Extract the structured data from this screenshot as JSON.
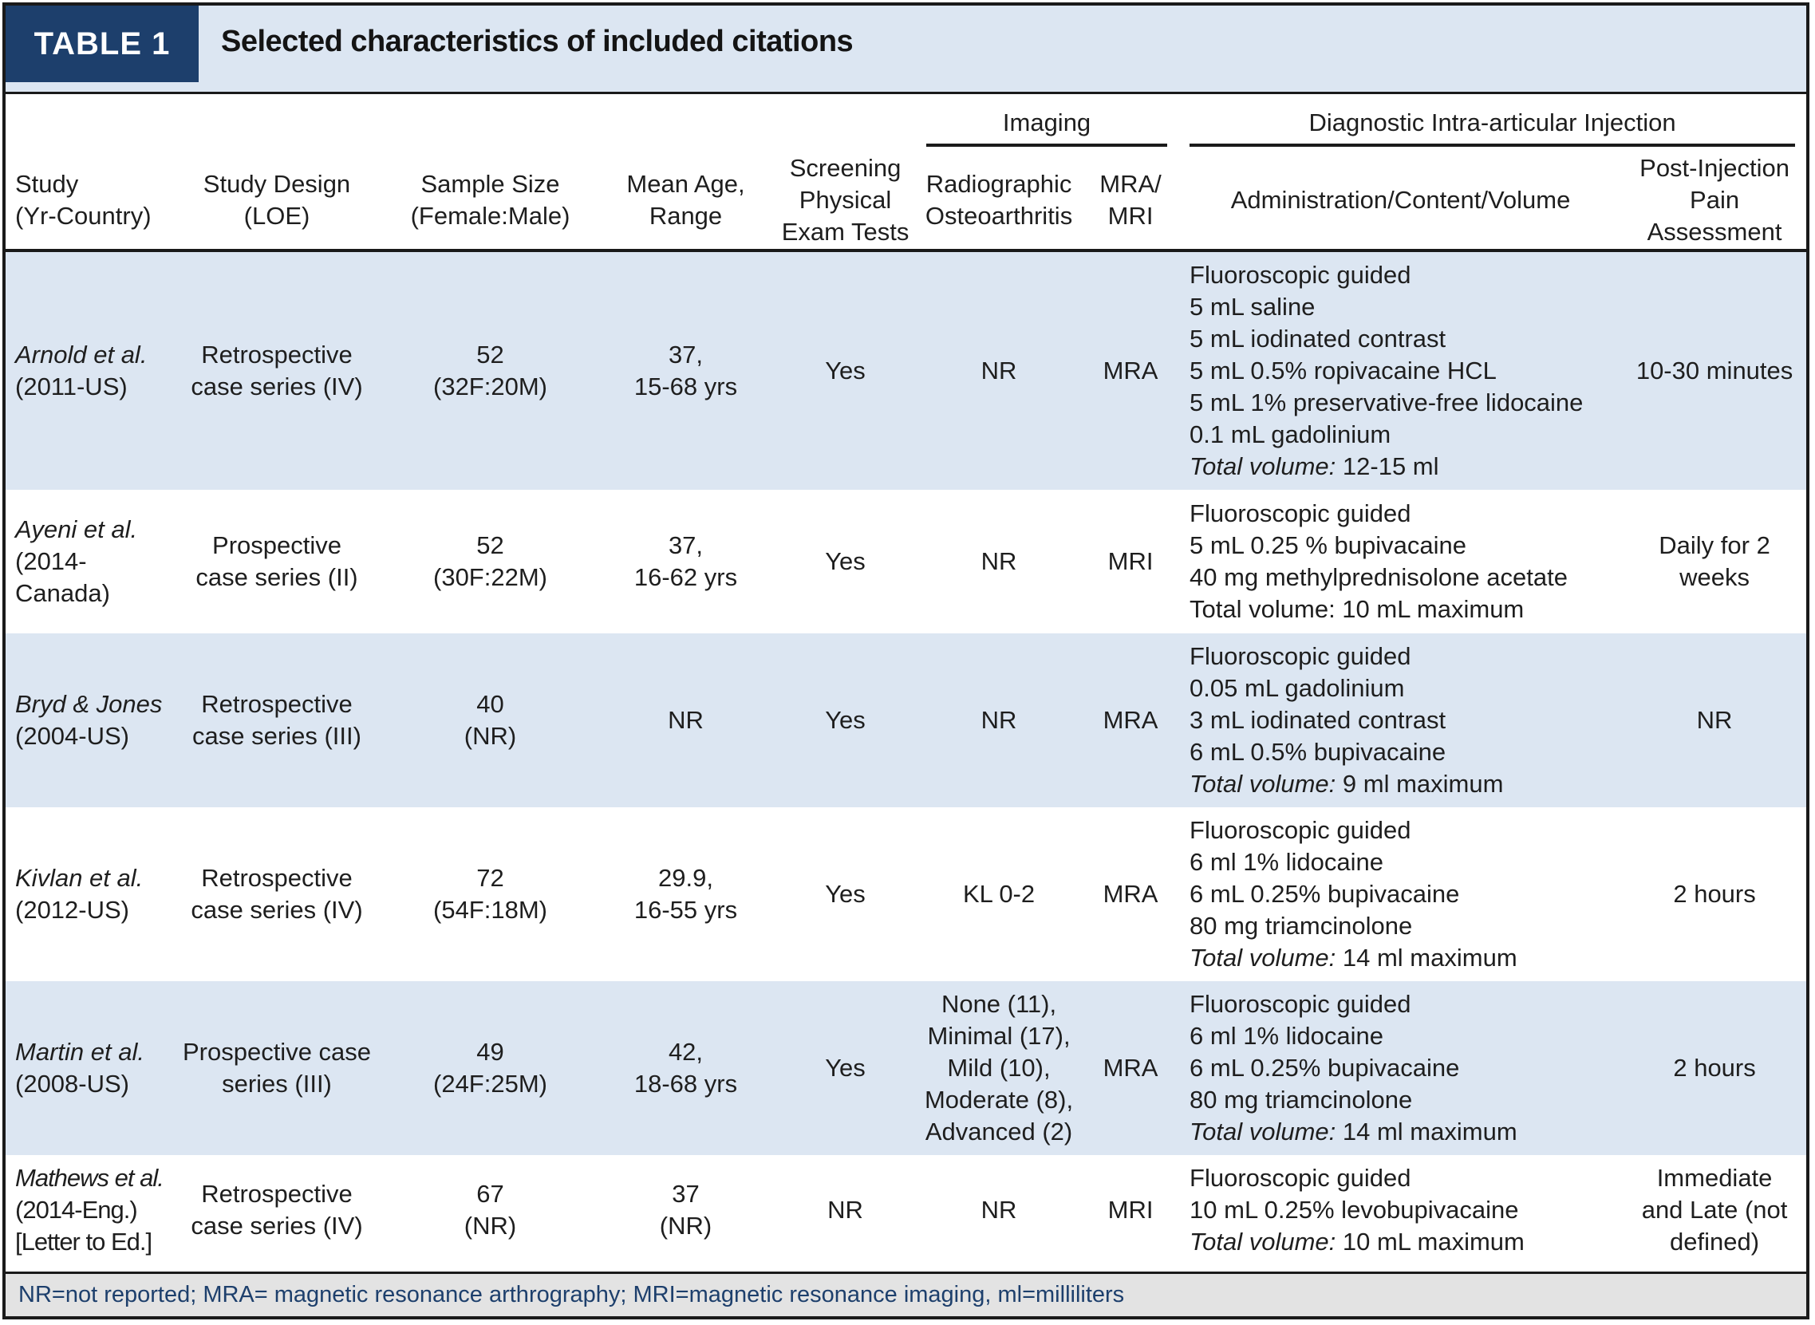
{
  "header": {
    "tag": "TABLE 1",
    "title": "Selected characteristics of included citations"
  },
  "groups": {
    "imaging": "Imaging",
    "injection": "Diagnostic Intra-articular Injection"
  },
  "columns": {
    "study": [
      "Study",
      "(Yr-Country)"
    ],
    "design": [
      "Study Design",
      "(LOE)"
    ],
    "sample": [
      "Sample Size",
      "(Female:Male)"
    ],
    "age": [
      "Mean Age,",
      "Range"
    ],
    "screening": [
      "Screening",
      "Physical",
      "Exam Tests"
    ],
    "radio": [
      "Radiographic",
      "Osteoarthritis"
    ],
    "mra": [
      "MRA/",
      "MRI"
    ],
    "admin": [
      "Administration/Content/Volume"
    ],
    "post": [
      "Post-Injection",
      "Pain Assessment"
    ]
  },
  "rows": [
    {
      "study": [
        "Arnold et al.",
        "(2011-US)"
      ],
      "design": [
        "Retrospective",
        "case series (IV)"
      ],
      "sample": [
        "52",
        "(32F:20M)"
      ],
      "age": [
        "37,",
        "15-68 yrs"
      ],
      "screening": "Yes",
      "radio": [
        "NR"
      ],
      "mra": "MRA",
      "admin": [
        "Fluoroscopic guided",
        "5 mL saline",
        "5 mL iodinated contrast",
        "5 mL 0.5% ropivacaine HCL",
        "5 mL 1% preservative-free lidocaine",
        "0.1 mL gadolinium"
      ],
      "total_label": "Total volume:",
      "total_value": " 12-15 ml",
      "post": [
        "10-30 minutes"
      ]
    },
    {
      "study": [
        "Ayeni et al.",
        "(2014-Canada)"
      ],
      "design": [
        "Prospective",
        "case series (II)"
      ],
      "sample": [
        "52",
        "(30F:22M)"
      ],
      "age": [
        "37,",
        "16-62 yrs"
      ],
      "screening": "Yes",
      "radio": [
        "NR"
      ],
      "mra": "MRI",
      "admin": [
        "Fluoroscopic guided",
        "5 mL 0.25 % bupivacaine",
        "40 mg methylprednisolone acetate",
        "Total volume: 10 mL maximum"
      ],
      "post": [
        "Daily for 2 weeks"
      ]
    },
    {
      "study": [
        "Bryd & Jones",
        "(2004-US)"
      ],
      "design": [
        "Retrospective",
        "case series (III)"
      ],
      "sample": [
        "40",
        "(NR)"
      ],
      "age": [
        "NR"
      ],
      "screening": "Yes",
      "radio": [
        "NR"
      ],
      "mra": "MRA",
      "admin": [
        "Fluoroscopic guided",
        "0.05 mL gadolinium",
        "3 mL iodinated contrast",
        "6 mL 0.5% bupivacaine"
      ],
      "total_label": "Total volume:",
      "total_value": " 9 ml maximum",
      "post": [
        "NR"
      ]
    },
    {
      "study": [
        "Kivlan et al.",
        "(2012-US)"
      ],
      "design": [
        "Retrospective",
        "case series (IV)"
      ],
      "sample": [
        "72",
        "(54F:18M)"
      ],
      "age": [
        "29.9,",
        "16-55 yrs"
      ],
      "screening": "Yes",
      "radio": [
        "KL 0-2"
      ],
      "mra": "MRA",
      "admin": [
        "Fluoroscopic guided",
        "6 ml 1% lidocaine",
        "6 mL 0.25% bupivacaine",
        "80 mg triamcinolone"
      ],
      "total_label": "Total volume:",
      "total_value": " 14 ml maximum",
      "post": [
        "2 hours"
      ]
    },
    {
      "study": [
        "Martin et al.",
        "(2008-US)"
      ],
      "design": [
        "Prospective case",
        "series (III)"
      ],
      "sample": [
        "49",
        "(24F:25M)"
      ],
      "age": [
        "42,",
        "18-68 yrs"
      ],
      "screening": "Yes",
      "radio": [
        "None (11),",
        "Minimal (17),",
        "Mild (10),",
        "Moderate (8),",
        "Advanced (2)"
      ],
      "mra": "MRA",
      "admin": [
        "Fluoroscopic guided",
        "6 ml 1% lidocaine",
        "6 mL 0.25% bupivacaine",
        "80 mg triamcinolone"
      ],
      "total_label": "Total volume:",
      "total_value": " 14 ml maximum",
      "post": [
        "2 hours"
      ]
    },
    {
      "study": [
        "Mathews et al.",
        "(2014-Eng.)",
        "[Letter to Ed.]"
      ],
      "design": [
        "Retrospective",
        "case series (IV)"
      ],
      "sample": [
        "67",
        "(NR)"
      ],
      "age": [
        "37",
        "(NR)"
      ],
      "screening": "NR",
      "radio": [
        "NR"
      ],
      "mra": "MRI",
      "admin": [
        "Fluoroscopic guided",
        "10 mL 0.25% levobupivacaine"
      ],
      "total_label": "Total volume:",
      "total_value": " 10 mL maximum",
      "post": [
        "Immediate",
        "and Late (not",
        "defined)"
      ]
    }
  ],
  "footer": "NR=not reported; MRA= magnetic resonance arthrography; MRI=magnetic resonance imaging, ml=milliliters"
}
